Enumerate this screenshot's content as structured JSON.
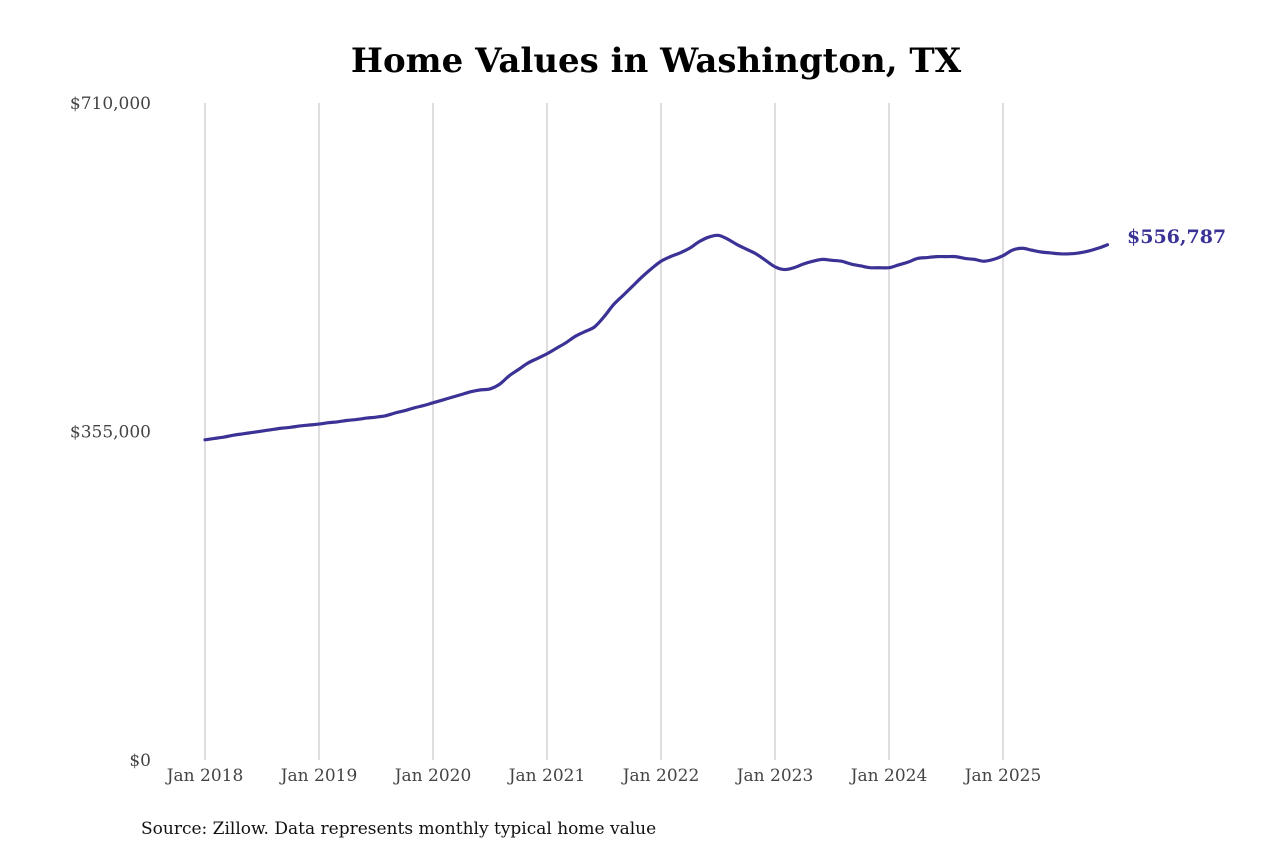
{
  "chart_data": {
    "type": "line",
    "title": "Home Values in Washington, TX",
    "xlabel": "",
    "ylabel": "",
    "ylim": [
      0,
      710000
    ],
    "y_ticks": [
      {
        "value": 0,
        "label": "$0"
      },
      {
        "value": 355000,
        "label": "$355,000"
      },
      {
        "value": 710000,
        "label": "$710,000"
      }
    ],
    "x_ticks": [
      {
        "value": "2018-01",
        "label": "Jan 2018"
      },
      {
        "value": "2019-01",
        "label": "Jan 2019"
      },
      {
        "value": "2020-01",
        "label": "Jan 2020"
      },
      {
        "value": "2021-01",
        "label": "Jan 2021"
      },
      {
        "value": "2022-01",
        "label": "Jan 2022"
      },
      {
        "value": "2023-01",
        "label": "Jan 2023"
      },
      {
        "value": "2024-01",
        "label": "Jan 2024"
      },
      {
        "value": "2025-01",
        "label": "Jan 2025"
      }
    ],
    "grid": "vertical lines at x ticks",
    "line_color": "#3b3296",
    "end_label": "$556,787",
    "x": [
      "2018-01",
      "2018-02",
      "2018-03",
      "2018-04",
      "2018-05",
      "2018-06",
      "2018-07",
      "2018-08",
      "2018-09",
      "2018-10",
      "2018-11",
      "2018-12",
      "2019-01",
      "2019-02",
      "2019-03",
      "2019-04",
      "2019-05",
      "2019-06",
      "2019-07",
      "2019-08",
      "2019-09",
      "2019-10",
      "2019-11",
      "2019-12",
      "2020-01",
      "2020-02",
      "2020-03",
      "2020-04",
      "2020-05",
      "2020-06",
      "2020-07",
      "2020-08",
      "2020-09",
      "2020-10",
      "2020-11",
      "2020-12",
      "2021-01",
      "2021-02",
      "2021-03",
      "2021-04",
      "2021-05",
      "2021-06",
      "2021-07",
      "2021-08",
      "2021-09",
      "2021-10",
      "2021-11",
      "2021-12",
      "2022-01",
      "2022-02",
      "2022-03",
      "2022-04",
      "2022-05",
      "2022-06",
      "2022-07",
      "2022-08",
      "2022-09",
      "2022-10",
      "2022-11",
      "2022-12",
      "2023-01",
      "2023-02",
      "2023-03",
      "2023-04",
      "2023-05",
      "2023-06",
      "2023-07",
      "2023-08",
      "2023-09",
      "2023-10",
      "2023-11",
      "2023-12",
      "2024-01",
      "2024-02",
      "2024-03",
      "2024-04",
      "2024-05",
      "2024-06",
      "2024-07",
      "2024-08",
      "2024-09",
      "2024-10",
      "2024-11",
      "2024-12",
      "2025-01",
      "2025-02",
      "2025-03",
      "2025-04",
      "2025-05",
      "2025-06",
      "2025-07",
      "2025-08",
      "2025-09",
      "2025-10",
      "2025-11",
      "2025-12"
    ],
    "series": [
      {
        "values": [
          346000,
          347500,
          349000,
          351000,
          352500,
          354000,
          355500,
          357000,
          358500,
          359500,
          361000,
          362000,
          363000,
          364500,
          365500,
          367000,
          368000,
          369500,
          370500,
          372000,
          375000,
          377500,
          380500,
          383000,
          386000,
          389000,
          392000,
          395000,
          398000,
          400000,
          401000,
          406000,
          415000,
          422000,
          429000,
          434000,
          439000,
          445000,
          451000,
          458000,
          463000,
          468000,
          479000,
          492000,
          502000,
          512000,
          522000,
          531000,
          539000,
          544000,
          548000,
          553000,
          560000,
          565000,
          567000,
          563000,
          557000,
          552000,
          547000,
          540000,
          533000,
          530000,
          532000,
          536000,
          539000,
          541000,
          540000,
          539000,
          536000,
          534000,
          532000,
          532000,
          532000,
          535000,
          538000,
          542000,
          543000,
          544000,
          544000,
          544000,
          542000,
          541000,
          539000,
          541000,
          545000,
          551000,
          553000,
          551000,
          549000,
          548000,
          547000,
          547000,
          548000,
          550000,
          553000,
          556787
        ]
      }
    ]
  },
  "source": "Source: Zillow. Data represents monthly typical home value"
}
